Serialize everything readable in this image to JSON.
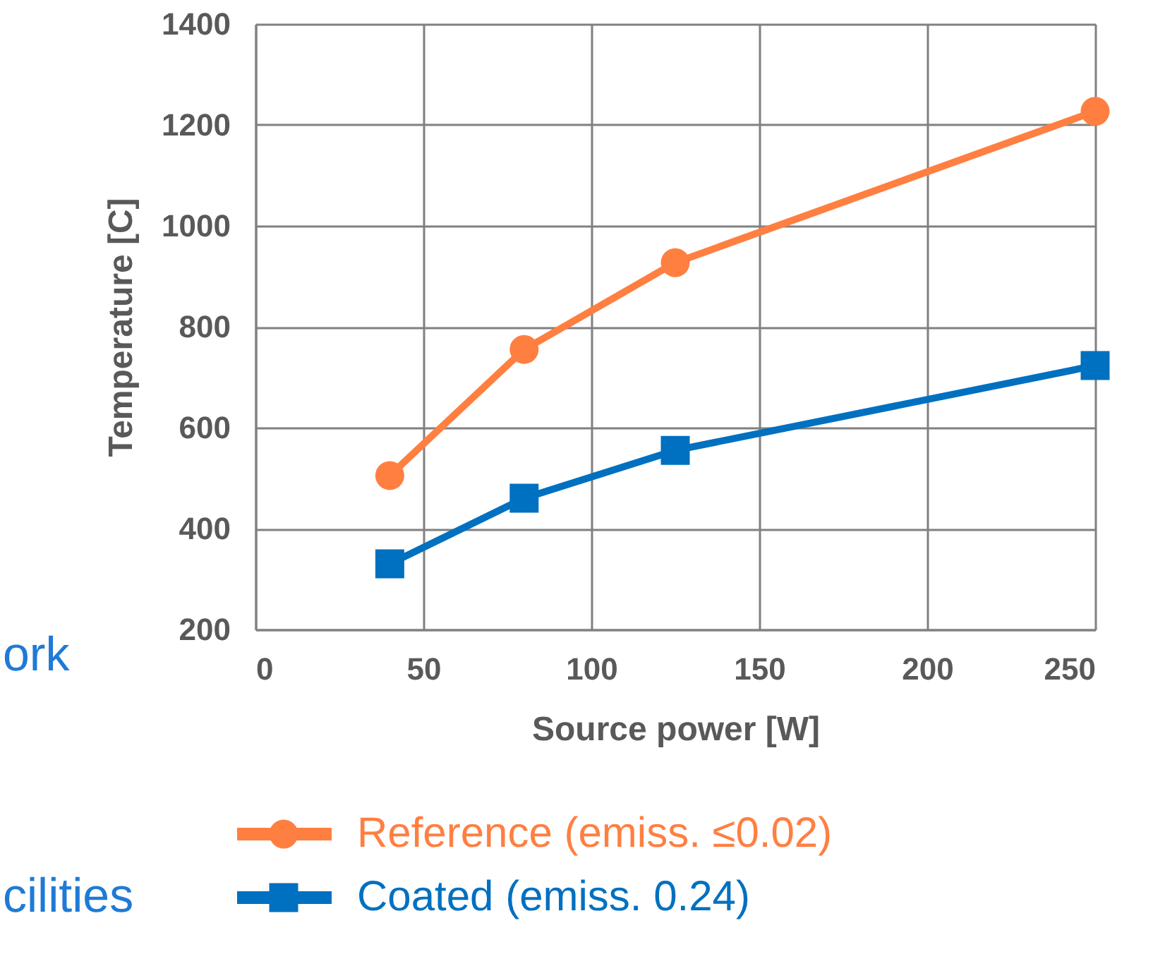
{
  "chart_data": {
    "type": "line",
    "xlabel": "Source power [W]",
    "ylabel": "Temperature [C]",
    "annotations": [
      "ork",
      "cilities"
    ],
    "xlim": [
      0,
      250
    ],
    "xticks": [
      0,
      50,
      100,
      150,
      200,
      250
    ],
    "ylim": [
      200,
      1400
    ],
    "yticks": [
      200,
      400,
      600,
      800,
      1000,
      1200,
      1400
    ],
    "grid": true,
    "legend": "bottom",
    "line_style": "solid",
    "series": [
      {
        "name": "Reference (emiss. ≤0.02)",
        "color": "#ff7f41",
        "marker": "circle",
        "x": [
          40,
          80,
          125,
          250
        ],
        "values": [
          505,
          755,
          927,
          1227
        ]
      },
      {
        "name": "Coated (emiss. 0.24)",
        "color": "#0070c0",
        "marker": "square",
        "x": [
          40,
          80,
          125,
          250
        ],
        "values": [
          330,
          460,
          555,
          723
        ]
      }
    ]
  }
}
